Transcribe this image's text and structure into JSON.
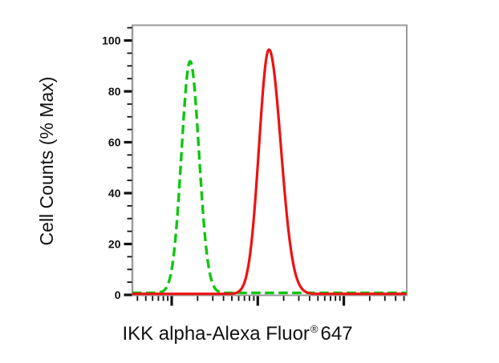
{
  "figure": {
    "background_color": "#ffffff",
    "description": "Flow cytometry overlay histogram with two fluorescence peaks"
  },
  "chart_data": {
    "type": "line",
    "subtype": "flow-cytometry-histogram-overlay",
    "title": "",
    "xlabel": "IKK alpha-Alexa Fluor® 647",
    "xlabel_parts": {
      "prefix": "IKK alpha-Alexa Fluor",
      "registered_mark": "®",
      "suffix": "647"
    },
    "ylabel": "Cell Counts (% Max)",
    "x_scale": "log10",
    "x_numeric_labels_shown": false,
    "grid": false,
    "legend": "none",
    "axes": {
      "x_log_range": [
        0.543,
        3.731
      ],
      "x_major_ticks_log10": [
        1,
        2,
        3
      ],
      "x_minor_mantissas": [
        2,
        3,
        4,
        5,
        6,
        7,
        8,
        9
      ],
      "y_range": [
        0,
        105.7
      ],
      "y_major_ticks": [
        0,
        20,
        40,
        60,
        80,
        100
      ],
      "y_tick_labels": [
        "0",
        "20",
        "40",
        "60",
        "80",
        "100"
      ],
      "y_minor_step": 5,
      "y_minor_max": 105
    },
    "series": [
      {
        "name": "green-dashed-curve",
        "style": "dashed",
        "color": "#10c610",
        "stroke_width": 3.4,
        "dash_pattern": "11.5 5.5",
        "baseline_percent": 0,
        "peak_percent": 91,
        "peak_x_log10": 1.214,
        "peak_x_linear": 16.4,
        "sigma_log10_left": 0.1,
        "sigma_log10_right": 0.103
      },
      {
        "name": "red-solid-curve",
        "style": "solid",
        "color": "#ee1212",
        "stroke_width": 3.2,
        "dash_pattern": "",
        "baseline_percent": 0,
        "peak_percent": 96,
        "peak_x_log10": 2.13,
        "peak_x_linear": 135,
        "sigma_log10_left": 0.115,
        "sigma_log10_right": 0.138
      }
    ],
    "frame": {
      "border_color": "#9a9a9a",
      "tick_color": "#111111",
      "label_color": "#111111"
    }
  }
}
